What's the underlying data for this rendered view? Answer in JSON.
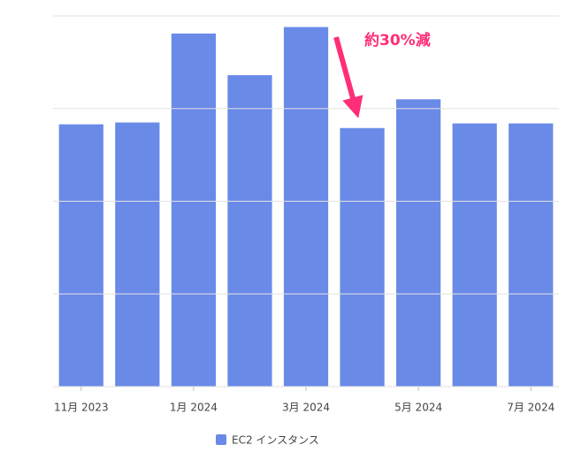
{
  "chart_data": {
    "type": "bar",
    "categories": [
      "11月 2023",
      null,
      "1月 2024",
      null,
      "3月 2024",
      null,
      "5月 2024",
      null,
      "7月 2024"
    ],
    "series": [
      {
        "name": "EC2 インスタンス",
        "color": "#6a8ae8",
        "values": [
          2.83,
          2.85,
          3.81,
          3.36,
          3.88,
          2.79,
          3.1,
          2.84,
          2.84
        ]
      }
    ],
    "ylim": [
      0,
      4
    ],
    "yticks": [
      0,
      1,
      2,
      3,
      4
    ],
    "grid": true,
    "annotation": "約30%減",
    "annotation_color": "#ff2e78"
  }
}
